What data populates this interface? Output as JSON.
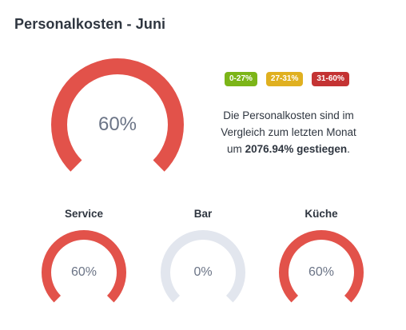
{
  "card": {
    "title": "Personalkosten - Juni"
  },
  "main_gauge": {
    "value_text": "60%",
    "fraction": 0.6,
    "color": "#e2524a"
  },
  "legend": {
    "badges": [
      {
        "label": "0-27%",
        "color": "#7cb518"
      },
      {
        "label": "27-31%",
        "color": "#e0b020"
      },
      {
        "label": "31-60%",
        "color": "#c43333"
      }
    ]
  },
  "info": {
    "text_before": "Die Personalkosten sind im Vergleich zum letzten Monat um ",
    "change_value": "2076.94%",
    "text_middle": " ",
    "change_word": "gestiegen",
    "text_after": "."
  },
  "sub_gauges": [
    {
      "label": "Service",
      "value_text": "60%",
      "fraction": 0.6,
      "color": "#e2524a"
    },
    {
      "label": "Bar",
      "value_text": "0%",
      "fraction": 0,
      "color": "#e2e6ee"
    },
    {
      "label": "Küche",
      "value_text": "60%",
      "fraction": 0.6,
      "color": "#e2524a"
    }
  ],
  "colors": {
    "empty_track": "#e2e6ee",
    "accent_red": "#e2524a"
  }
}
